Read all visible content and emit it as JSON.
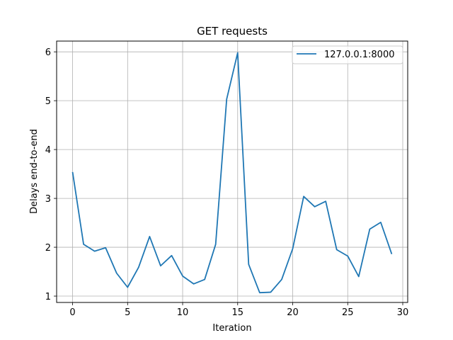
{
  "chart_data": {
    "type": "line",
    "title": "GET requests",
    "xlabel": "Iteration",
    "ylabel": "Delays end-to-end",
    "xlim": [
      -1.45,
      30.45
    ],
    "ylim": [
      0.87,
      6.22
    ],
    "xticks": [
      0,
      5,
      10,
      15,
      20,
      25,
      30
    ],
    "yticks": [
      1,
      2,
      3,
      4,
      5,
      6
    ],
    "grid": true,
    "legend_position": "top-right",
    "series": [
      {
        "name": "127.0.0.1:8000",
        "color": "#1f77b4",
        "x": [
          0,
          1,
          2,
          3,
          4,
          5,
          6,
          7,
          8,
          9,
          10,
          11,
          12,
          13,
          14,
          15,
          16,
          17,
          18,
          19,
          20,
          21,
          22,
          23,
          24,
          25,
          26,
          27,
          28,
          29
        ],
        "y": [
          3.54,
          2.06,
          1.92,
          1.99,
          1.47,
          1.18,
          1.59,
          2.22,
          1.62,
          1.83,
          1.41,
          1.25,
          1.34,
          2.06,
          5.03,
          5.98,
          1.65,
          1.07,
          1.08,
          1.34,
          1.97,
          3.04,
          2.83,
          2.94,
          1.95,
          1.82,
          1.4,
          2.37,
          2.51,
          1.86
        ]
      }
    ]
  }
}
